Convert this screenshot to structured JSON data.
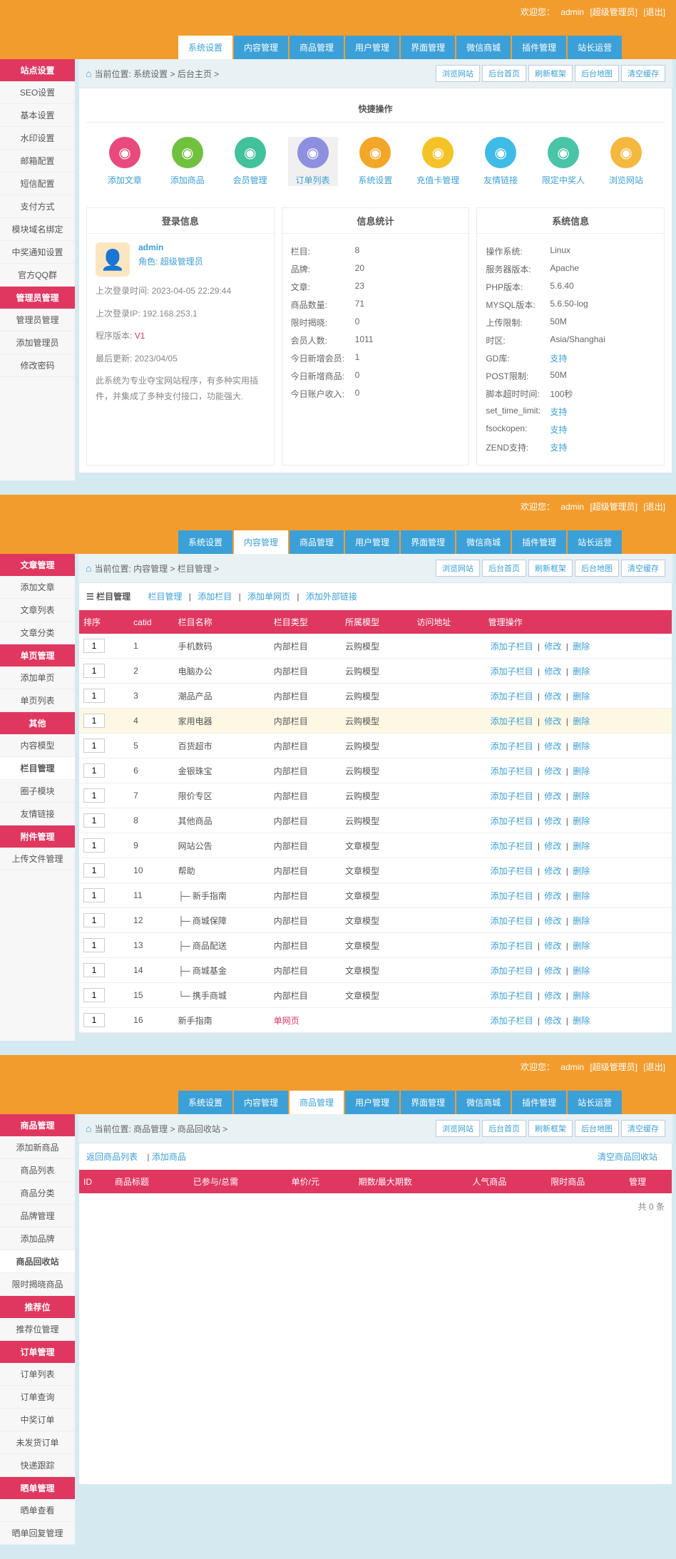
{
  "common": {
    "welcome_prefix": "欢迎您：",
    "user": "admin",
    "role_tag": "[超级管理员]",
    "logout": "[退出]",
    "tabs": [
      "系统设置",
      "内容管理",
      "商品管理",
      "用户管理",
      "界面管理",
      "微信商城",
      "插件管理",
      "站长运营"
    ],
    "crumb_btns": [
      "浏览网站",
      "后台首页",
      "刷新框架",
      "后台地图",
      "清空缓存"
    ]
  },
  "s1": {
    "crumb": "当前位置: 系统设置 > 后台主页 >",
    "side_heads": [
      "站点设置",
      "管理员管理"
    ],
    "side_items_1": [
      "SEO设置",
      "基本设置",
      "水印设置",
      "邮箱配置",
      "短信配置",
      "支付方式",
      "模块域名绑定",
      "中奖通知设置",
      "官方QQ群"
    ],
    "side_items_2": [
      "管理员管理",
      "添加管理员",
      "修改密码"
    ],
    "quick_title": "快捷操作",
    "quick": [
      {
        "label": "添加文章",
        "color": "#e84a7d"
      },
      {
        "label": "添加商品",
        "color": "#6fc13e"
      },
      {
        "label": "会员管理",
        "color": "#41c29a"
      },
      {
        "label": "订单列表",
        "color": "#8f8fe0"
      },
      {
        "label": "系统设置",
        "color": "#f3a728"
      },
      {
        "label": "充值卡管理",
        "color": "#f3c328"
      },
      {
        "label": "友情链接",
        "color": "#3fbce6"
      },
      {
        "label": "限定中奖人",
        "color": "#49c4a8"
      },
      {
        "label": "浏览网站",
        "color": "#f5b83e"
      }
    ],
    "quick_active": 3,
    "box_titles": [
      "登录信息",
      "信息统计",
      "系统信息"
    ],
    "login": {
      "name": "admin",
      "role_label": "角色:",
      "role": "超级管理员",
      "last_time_label": "上次登录时间:",
      "last_time": "2023-04-05 22:29:44",
      "last_ip_label": "上次登录IP:",
      "last_ip": "192.168.253.1",
      "ver_label": "程序版本:",
      "ver": "V1",
      "update_label": "最后更新:",
      "update": "2023/04/05",
      "desc": "此系统为专业夺宝网站程序，有多种实用插件，并集成了多种支付接口，功能强大."
    },
    "stats": [
      {
        "k": "栏目:",
        "v": "8"
      },
      {
        "k": "品牌:",
        "v": "20"
      },
      {
        "k": "文章:",
        "v": "23"
      },
      {
        "k": "商品数量:",
        "v": "71"
      },
      {
        "k": "限时揭晓:",
        "v": "0"
      },
      {
        "k": "会员人数:",
        "v": "1011"
      },
      {
        "k": "今日新增会员:",
        "v": "1"
      },
      {
        "k": "今日新增商品:",
        "v": "0"
      },
      {
        "k": "今日账户收入:",
        "v": "0"
      }
    ],
    "sys": [
      {
        "k": "操作系统:",
        "v": "Linux"
      },
      {
        "k": "服务器版本:",
        "v": "Apache"
      },
      {
        "k": "PHP版本:",
        "v": "5.6.40"
      },
      {
        "k": "MYSQL版本:",
        "v": "5.6.50-log"
      },
      {
        "k": "上传限制:",
        "v": "50M"
      },
      {
        "k": "时区:",
        "v": "Asia/Shanghai"
      },
      {
        "k": "GD库:",
        "v": "支持",
        "link": true
      },
      {
        "k": "POST限制:",
        "v": "50M"
      },
      {
        "k": "脚本超时时间:",
        "v": "100秒"
      },
      {
        "k": "set_time_limit:",
        "v": "支持",
        "link": true
      },
      {
        "k": "fsockopen:",
        "v": "支持",
        "link": true
      },
      {
        "k": "ZEND支持:",
        "v": "支持",
        "link": true
      }
    ]
  },
  "s2": {
    "crumb": "当前位置: 内容管理 > 栏目管理 >",
    "active_tab": 1,
    "side": [
      {
        "head": "文章管理",
        "items": [
          "添加文章",
          "文章列表",
          "文章分类"
        ]
      },
      {
        "head": "单页管理",
        "items": [
          "添加单页",
          "单页列表"
        ]
      },
      {
        "head": "其他",
        "items": [
          "内容模型",
          "栏目管理",
          "圈子模块",
          "友情链接"
        ],
        "active": 1
      },
      {
        "head": "附件管理",
        "items": [
          "上传文件管理"
        ]
      }
    ],
    "panel_title": "栏目管理",
    "panel_tabs": [
      "栏目管理",
      "添加栏目",
      "添加单网页",
      "添加外部链接"
    ],
    "th": [
      "排序",
      "catid",
      "栏目名称",
      "栏目类型",
      "所属模型",
      "访问地址",
      "管理操作"
    ],
    "rows": [
      {
        "s": "1",
        "id": "1",
        "name": "手机数码",
        "type": "内部栏目",
        "model": "云购模型"
      },
      {
        "s": "1",
        "id": "2",
        "name": "电脑办公",
        "type": "内部栏目",
        "model": "云购模型"
      },
      {
        "s": "1",
        "id": "3",
        "name": "潮品产品",
        "type": "内部栏目",
        "model": "云购模型"
      },
      {
        "s": "1",
        "id": "4",
        "name": "家用电器",
        "type": "内部栏目",
        "model": "云购模型",
        "hl": true
      },
      {
        "s": "1",
        "id": "5",
        "name": "百货超市",
        "type": "内部栏目",
        "model": "云购模型"
      },
      {
        "s": "1",
        "id": "6",
        "name": "金银珠宝",
        "type": "内部栏目",
        "model": "云购模型"
      },
      {
        "s": "1",
        "id": "7",
        "name": "限价专区",
        "type": "内部栏目",
        "model": "云购模型"
      },
      {
        "s": "1",
        "id": "8",
        "name": "其他商品",
        "type": "内部栏目",
        "model": "云购模型"
      },
      {
        "s": "1",
        "id": "9",
        "name": "网站公告",
        "type": "内部栏目",
        "model": "文章模型"
      },
      {
        "s": "1",
        "id": "10",
        "name": "帮助",
        "type": "内部栏目",
        "model": "文章模型"
      },
      {
        "s": "1",
        "id": "11",
        "name": "├─ 新手指南",
        "type": "内部栏目",
        "model": "文章模型"
      },
      {
        "s": "1",
        "id": "12",
        "name": "├─ 商城保障",
        "type": "内部栏目",
        "model": "文章模型"
      },
      {
        "s": "1",
        "id": "13",
        "name": "├─ 商品配送",
        "type": "内部栏目",
        "model": "文章模型"
      },
      {
        "s": "1",
        "id": "14",
        "name": "├─ 商城基金",
        "type": "内部栏目",
        "model": "文章模型"
      },
      {
        "s": "1",
        "id": "15",
        "name": "└─ 携手商城",
        "type": "内部栏目",
        "model": "文章模型"
      },
      {
        "s": "1",
        "id": "16",
        "name": "新手指南",
        "type": "单网页",
        "model": "",
        "red": true
      }
    ],
    "ops": [
      "添加子栏目",
      "修改",
      "删除"
    ]
  },
  "s3": {
    "crumb": "当前位置: 商品管理 > 商品回收站 >",
    "active_tab": 2,
    "side": [
      {
        "head": "商品管理",
        "items": [
          "添加新商品",
          "商品列表",
          "商品分类",
          "品牌管理",
          "添加品牌",
          "商品回收站",
          "限时揭晓商品"
        ],
        "active": 5
      },
      {
        "head": "推荐位",
        "items": [
          "推荐位管理"
        ]
      },
      {
        "head": "订单管理",
        "items": [
          "订单列表",
          "订单查询",
          "中奖订单",
          "未发货订单",
          "快递跟踪"
        ]
      },
      {
        "head": "晒单管理",
        "items": [
          "晒单查看",
          "晒单回复管理"
        ]
      }
    ],
    "hint_links": [
      "返回商品列表",
      "添加商品"
    ],
    "clear_btn": "清空商品回收站",
    "th": [
      "ID",
      "商品标题",
      "已参与/总需",
      "单价/元",
      "期数/最大期数",
      "人气商品",
      "限时商品",
      "管理"
    ],
    "pager": "共 0 条"
  }
}
